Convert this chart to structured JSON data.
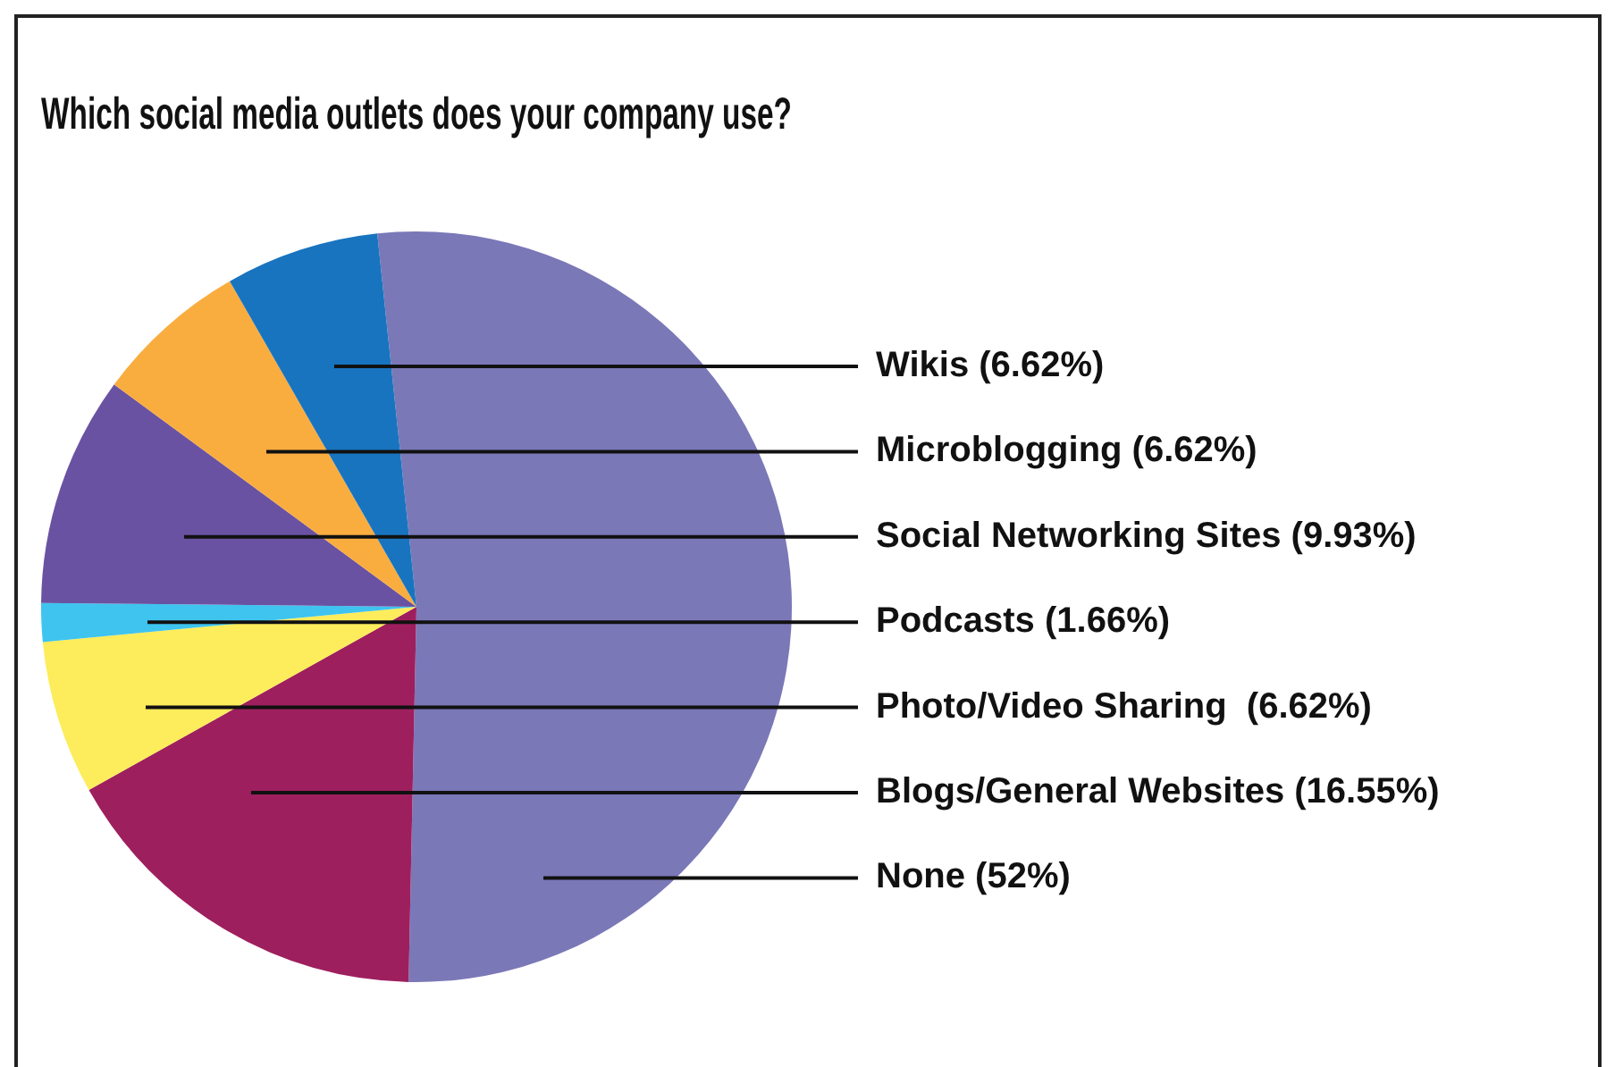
{
  "chart_data": {
    "type": "pie",
    "title": "Which social media outlets does your company use?",
    "categories": [
      "None",
      "Blogs/General Websites",
      "Photo/Video Sharing ",
      "Podcasts",
      "Social Networking Sites",
      "Microblogging",
      "Wikis"
    ],
    "values": [
      52,
      16.55,
      6.62,
      1.66,
      9.93,
      6.62,
      6.62
    ],
    "value_labels": [
      "(52%)",
      "(16.55%)",
      "(6.62%)",
      "(1.66%)",
      "(9.93%)",
      "(6.62%)",
      "(6.62%)"
    ],
    "colors": [
      "#7b78b8",
      "#9e1f5e",
      "#fdec5b",
      "#3ec4ef",
      "#6a52a2",
      "#f9ad3f",
      "#1874bf"
    ]
  }
}
